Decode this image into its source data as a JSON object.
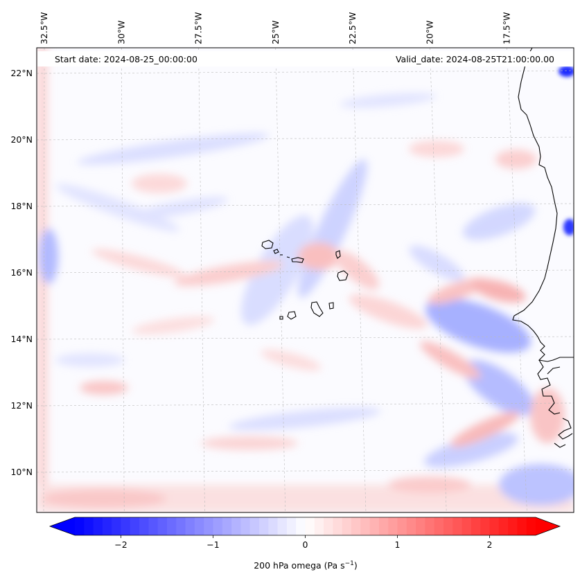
{
  "map": {
    "start_date": "Start date: 2024-08-25_00:00:00",
    "valid_date": "Valid_date: 2024-08-25T21:00:00.00",
    "lon_labels": [
      {
        "label": "32.5°W",
        "lon": -32.5
      },
      {
        "label": "30°W",
        "lon": -30
      },
      {
        "label": "27.5°W",
        "lon": -27.5
      },
      {
        "label": "25°W",
        "lon": -25
      },
      {
        "label": "22.5°W",
        "lon": -22.5
      },
      {
        "label": "20°W",
        "lon": -20
      },
      {
        "label": "17.5°W",
        "lon": -17.5
      }
    ],
    "lat_labels": [
      {
        "label": "22°N",
        "lat": 22
      },
      {
        "label": "20°N",
        "lat": 20
      },
      {
        "label": "18°N",
        "lat": 18
      },
      {
        "label": "16°N",
        "lat": 16
      },
      {
        "label": "14°N",
        "lat": 14
      },
      {
        "label": "12°N",
        "lat": 12
      },
      {
        "label": "10°N",
        "lat": 10
      }
    ],
    "gridlines": true,
    "coastline_color": "#000000",
    "features": [
      "Cape Verde islands",
      "West African coastline"
    ]
  },
  "colorbar": {
    "label_main": "200 hPa omega (Pa s",
    "label_exp": "−1",
    "label_close": ")",
    "ticks": [
      {
        "label": "−2",
        "value": -2
      },
      {
        "label": "−1",
        "value": -1
      },
      {
        "label": "0",
        "value": 0
      },
      {
        "label": "1",
        "value": 1
      },
      {
        "label": "2",
        "value": 2
      }
    ],
    "range": [
      -2.5,
      2.5
    ],
    "extend": "both",
    "colormap": "bwr",
    "color_min": "#0000ff",
    "color_mid": "#ffffff",
    "color_max": "#ff0000"
  }
}
